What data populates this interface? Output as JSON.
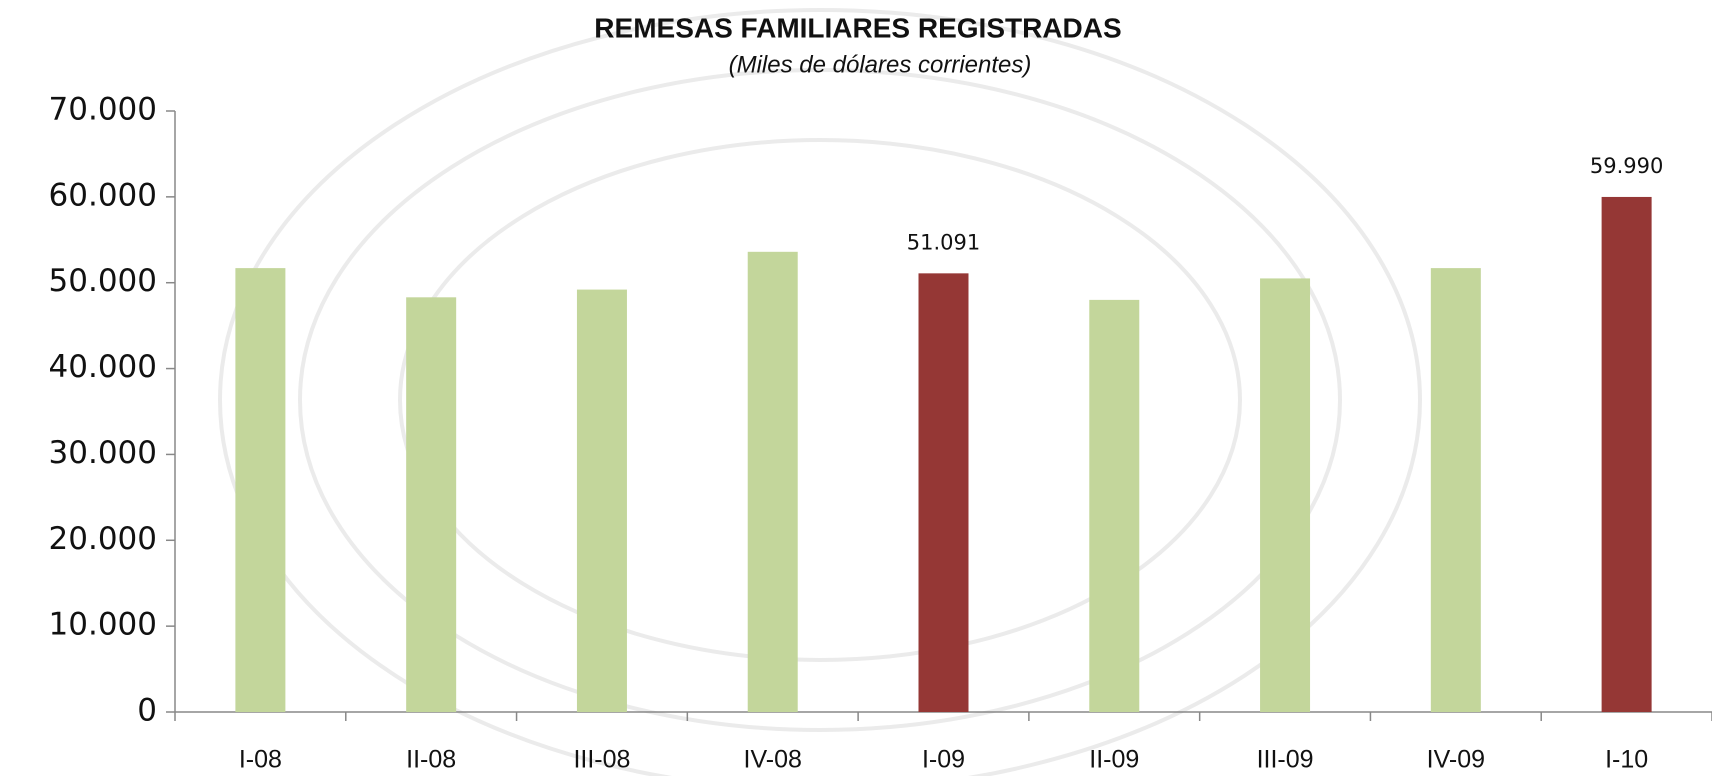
{
  "chart_data": {
    "type": "bar",
    "title": "REMESAS FAMILIARES REGISTRADAS",
    "subtitle": "(Miles de dólares corrientes)",
    "categories": [
      "I-08",
      "II-08",
      "III-08",
      "IV-08",
      "I-09",
      "II-09",
      "III-09",
      "IV-09",
      "I-10"
    ],
    "values": [
      51700,
      48300,
      49200,
      53600,
      51091,
      48000,
      50500,
      51700,
      59990
    ],
    "value_labels": [
      null,
      null,
      null,
      null,
      "51.091",
      null,
      null,
      null,
      "59.990"
    ],
    "colors": [
      "#c3d69b",
      "#c3d69b",
      "#c3d69b",
      "#c3d69b",
      "#953735",
      "#c3d69b",
      "#c3d69b",
      "#c3d69b",
      "#953735"
    ],
    "ylim": [
      0,
      70000
    ],
    "yticks": [
      0,
      {
        "value": 10000,
        "label": "10.000"
      },
      {
        "value": 20000,
        "label": "20.000"
      },
      {
        "value": 30000,
        "label": "30.000"
      },
      {
        "value": 40000,
        "label": "40.000"
      },
      {
        "value": 50000,
        "label": "50.000"
      },
      {
        "value": 60000,
        "label": "60.000"
      },
      {
        "value": 70000,
        "label": "70.000"
      }
    ],
    "grid": false
  }
}
